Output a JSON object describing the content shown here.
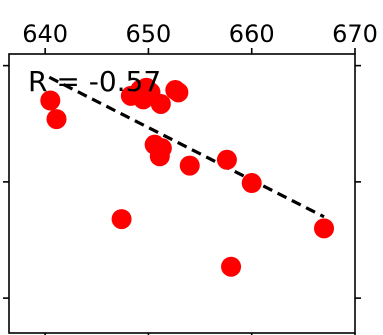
{
  "chart_data": {
    "type": "scatter",
    "title": "",
    "xlabel": "",
    "ylabel": "",
    "xlim": [
      636.5,
      670
    ],
    "ylim": [
      -0.15,
      1.05
    ],
    "x_ticks": [
      640,
      650,
      660,
      670
    ],
    "x_tick_labels": [
      "640",
      "650",
      "660",
      "670"
    ],
    "y_ticks": [
      0.0,
      0.5,
      1.0
    ],
    "x_axis_position": "top",
    "grid": false,
    "annotation": "R = -0.57",
    "marker_color": "#ff0000",
    "trendline_color": "#000000",
    "points": [
      {
        "x": 640.5,
        "y": 0.85
      },
      {
        "x": 641.1,
        "y": 0.77
      },
      {
        "x": 648.3,
        "y": 0.87
      },
      {
        "x": 649.2,
        "y": 0.895
      },
      {
        "x": 649.5,
        "y": 0.855
      },
      {
        "x": 649.8,
        "y": 0.905
      },
      {
        "x": 650.2,
        "y": 0.885
      },
      {
        "x": 651.2,
        "y": 0.835
      },
      {
        "x": 652.6,
        "y": 0.895
      },
      {
        "x": 652.9,
        "y": 0.885
      },
      {
        "x": 650.6,
        "y": 0.66
      },
      {
        "x": 651.3,
        "y": 0.645
      },
      {
        "x": 651.1,
        "y": 0.61
      },
      {
        "x": 654.0,
        "y": 0.57
      },
      {
        "x": 657.6,
        "y": 0.595
      },
      {
        "x": 660.0,
        "y": 0.495
      },
      {
        "x": 647.4,
        "y": 0.34
      },
      {
        "x": 667.0,
        "y": 0.3
      },
      {
        "x": 658.0,
        "y": 0.135
      }
    ],
    "trendline": {
      "x": [
        640.4,
        667.0
      ],
      "y": [
        0.95,
        0.35
      ]
    }
  }
}
